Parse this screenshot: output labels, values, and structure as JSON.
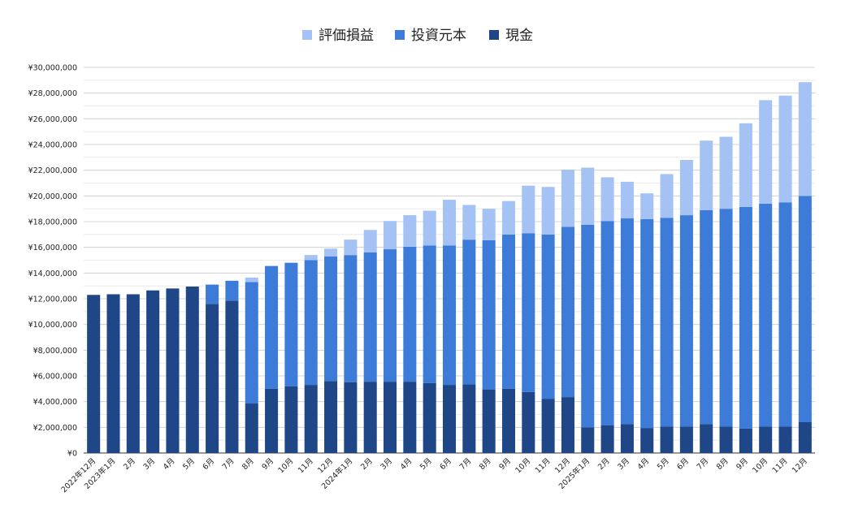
{
  "chart_data": {
    "type": "bar",
    "stacked": true,
    "title": "",
    "xlabel": "",
    "ylabel": "",
    "ylim": [
      0,
      30000000
    ],
    "ytick_step": 2000000,
    "yticks": [
      "¥0",
      "¥2,000,000",
      "¥4,000,000",
      "¥6,000,000",
      "¥8,000,000",
      "¥10,000,000",
      "¥12,000,000",
      "¥14,000,000",
      "¥16,000,000",
      "¥18,000,000",
      "¥20,000,000",
      "¥22,000,000",
      "¥24,000,000",
      "¥26,000,000",
      "¥28,000,000",
      "¥30,000,000"
    ],
    "grid": true,
    "legend_position": "top-center",
    "categories": [
      "2022年12月",
      "2023年1月",
      "2月",
      "3月",
      "4月",
      "5月",
      "6月",
      "7月",
      "8月",
      "9月",
      "10月",
      "11月",
      "12月",
      "2024年1月",
      "2月",
      "3月",
      "4月",
      "5月",
      "6月",
      "7月",
      "8月",
      "9月",
      "10月",
      "11月",
      "12月",
      "2025年1月",
      "2月",
      "3月",
      "4月",
      "5月",
      "6月",
      "7月",
      "8月",
      "9月",
      "10月",
      "11月",
      "12月"
    ],
    "series": [
      {
        "name": "現金",
        "color": "#1f4788",
        "values": [
          12300000,
          12350000,
          12350000,
          12650000,
          12800000,
          12950000,
          11600000,
          11850000,
          3850000,
          5000000,
          5200000,
          5300000,
          5600000,
          5500000,
          5550000,
          5550000,
          5550000,
          5450000,
          5300000,
          5350000,
          4950000,
          5000000,
          4750000,
          4200000,
          4350000,
          2000000,
          2150000,
          2250000,
          1950000,
          2050000,
          2050000,
          2250000,
          2050000,
          1900000,
          2050000,
          2050000,
          2400000
        ]
      },
      {
        "name": "投資元本",
        "color": "#3d7bd9",
        "values": [
          0,
          0,
          0,
          0,
          0,
          0,
          1500000,
          1550000,
          9450000,
          9550000,
          9600000,
          9700000,
          9700000,
          9900000,
          10050000,
          10300000,
          10500000,
          10700000,
          10850000,
          11250000,
          11600000,
          12000000,
          12350000,
          12800000,
          13250000,
          15750000,
          15900000,
          16000000,
          16250000,
          16250000,
          16450000,
          16650000,
          16950000,
          17250000,
          17350000,
          17450000,
          17600000
        ]
      },
      {
        "name": "評価損益",
        "color": "#a4c2f4",
        "values": [
          0,
          0,
          0,
          0,
          0,
          0,
          0,
          0,
          350000,
          0,
          0,
          400000,
          600000,
          1200000,
          1750000,
          2200000,
          2450000,
          2700000,
          3550000,
          2700000,
          2450000,
          2600000,
          3700000,
          3700000,
          4450000,
          4450000,
          3400000,
          2850000,
          2000000,
          3400000,
          4300000,
          5400000,
          5600000,
          6500000,
          8050000,
          8300000,
          8850000
        ]
      }
    ]
  }
}
